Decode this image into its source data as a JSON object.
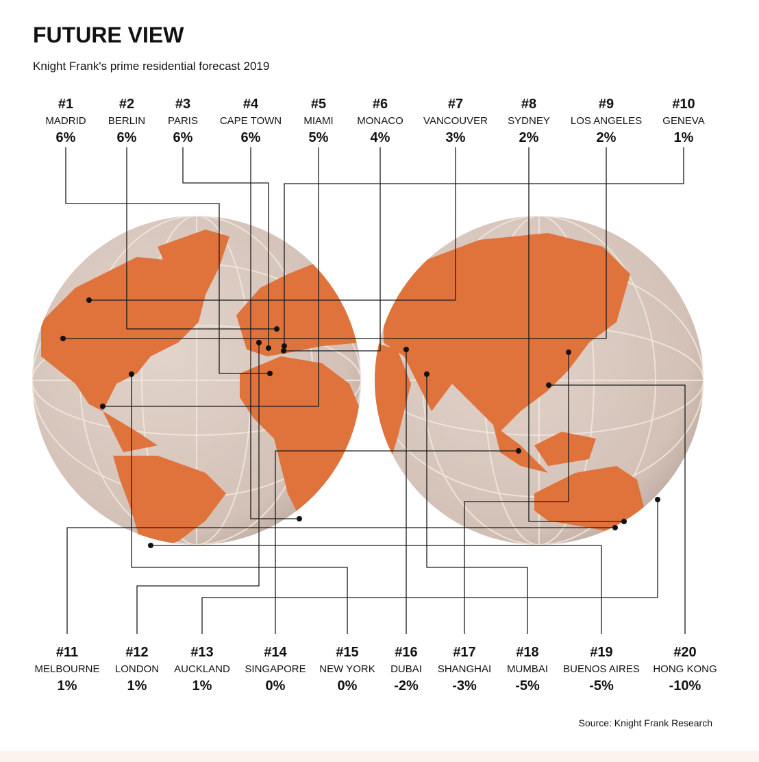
{
  "header": {
    "title": "FUTURE VIEW",
    "subtitle": "Knight Frank's prime residential forecast 2019"
  },
  "cities": [
    {
      "rank": "#1",
      "name": "MADRID",
      "change": "6%"
    },
    {
      "rank": "#2",
      "name": "BERLIN",
      "change": "6%"
    },
    {
      "rank": "#3",
      "name": "PARIS",
      "change": "6%"
    },
    {
      "rank": "#4",
      "name": "CAPE TOWN",
      "change": "6%"
    },
    {
      "rank": "#5",
      "name": "MIAMI",
      "change": "5%"
    },
    {
      "rank": "#6",
      "name": "MONACO",
      "change": "4%"
    },
    {
      "rank": "#7",
      "name": "VANCOUVER",
      "change": "3%"
    },
    {
      "rank": "#8",
      "name": "SYDNEY",
      "change": "2%"
    },
    {
      "rank": "#9",
      "name": "LOS ANGELES",
      "change": "2%"
    },
    {
      "rank": "#10",
      "name": "GENEVA",
      "change": "1%"
    },
    {
      "rank": "#11",
      "name": "MELBOURNE",
      "change": "1%"
    },
    {
      "rank": "#12",
      "name": "LONDON",
      "change": "1%"
    },
    {
      "rank": "#13",
      "name": "AUCKLAND",
      "change": "1%"
    },
    {
      "rank": "#14",
      "name": "SINGAPORE",
      "change": "0%"
    },
    {
      "rank": "#15",
      "name": "NEW YORK",
      "change": "0%"
    },
    {
      "rank": "#16",
      "name": "DUBAI",
      "change": "-2%"
    },
    {
      "rank": "#17",
      "name": "SHANGHAI",
      "change": "-3%"
    },
    {
      "rank": "#18",
      "name": "MUMBAI",
      "change": "-5%"
    },
    {
      "rank": "#19",
      "name": "BUENOS AIRES",
      "change": "-5%"
    },
    {
      "rank": "#20",
      "name": "HONG KONG",
      "change": "-10%"
    }
  ],
  "source": "Source: Knight Frank Research"
}
